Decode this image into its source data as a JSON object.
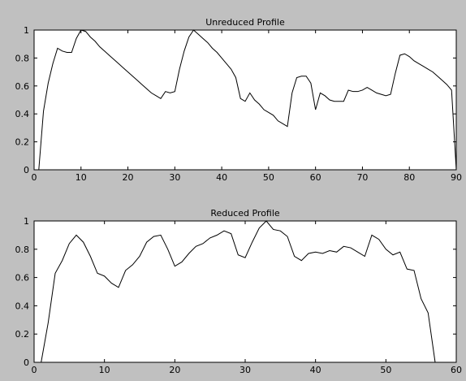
{
  "chart_data": [
    {
      "type": "line",
      "title": "Unreduced Profile",
      "xlabel": "",
      "ylabel": "",
      "xlim": [
        0,
        90
      ],
      "ylim": [
        0,
        1
      ],
      "xticks": [
        0,
        10,
        20,
        30,
        40,
        50,
        60,
        70,
        80,
        90
      ],
      "yticks": [
        0,
        0.2,
        0.4,
        0.6,
        0.8,
        1
      ],
      "grid": false,
      "legend": "none",
      "series": [
        {
          "color": "#000000",
          "x": [
            1,
            2,
            3,
            4,
            5,
            6,
            7,
            8,
            9,
            10,
            11,
            12,
            13,
            14,
            15,
            16,
            17,
            18,
            19,
            20,
            21,
            22,
            23,
            24,
            25,
            26,
            27,
            28,
            29,
            30,
            31,
            32,
            33,
            34,
            35,
            36,
            37,
            38,
            39,
            40,
            41,
            42,
            43,
            44,
            45,
            46,
            47,
            48,
            49,
            50,
            51,
            52,
            53,
            54,
            55,
            56,
            57,
            58,
            59,
            60,
            61,
            62,
            63,
            64,
            65,
            66,
            67,
            68,
            69,
            70,
            71,
            72,
            73,
            74,
            75,
            76,
            77,
            78,
            79,
            80,
            81,
            82,
            83,
            84,
            85,
            86,
            87,
            88,
            89,
            90
          ],
          "values": [
            0.0,
            0.42,
            0.62,
            0.76,
            0.87,
            0.85,
            0.84,
            0.84,
            0.94,
            1.0,
            0.99,
            0.95,
            0.92,
            0.88,
            0.85,
            0.82,
            0.79,
            0.76,
            0.73,
            0.7,
            0.67,
            0.64,
            0.61,
            0.58,
            0.55,
            0.53,
            0.51,
            0.56,
            0.55,
            0.56,
            0.72,
            0.85,
            0.95,
            1.0,
            0.97,
            0.94,
            0.91,
            0.87,
            0.84,
            0.8,
            0.76,
            0.72,
            0.66,
            0.51,
            0.49,
            0.55,
            0.5,
            0.47,
            0.43,
            0.41,
            0.39,
            0.35,
            0.33,
            0.31,
            0.55,
            0.66,
            0.67,
            0.67,
            0.62,
            0.43,
            0.55,
            0.53,
            0.5,
            0.49,
            0.49,
            0.49,
            0.57,
            0.56,
            0.56,
            0.57,
            0.59,
            0.57,
            0.55,
            0.54,
            0.53,
            0.54,
            0.69,
            0.82,
            0.83,
            0.81,
            0.78,
            0.76,
            0.74,
            0.72,
            0.7,
            0.67,
            0.64,
            0.61,
            0.57,
            0.0
          ]
        }
      ]
    },
    {
      "type": "line",
      "title": "Reduced Profile",
      "xlabel": "",
      "ylabel": "",
      "xlim": [
        0,
        60
      ],
      "ylim": [
        0,
        1
      ],
      "xticks": [
        0,
        10,
        20,
        30,
        40,
        50,
        60
      ],
      "yticks": [
        0,
        0.2,
        0.4,
        0.6,
        0.8,
        1
      ],
      "grid": false,
      "legend": "none",
      "series": [
        {
          "color": "#000000",
          "x": [
            1,
            2,
            3,
            4,
            5,
            6,
            7,
            8,
            9,
            10,
            11,
            12,
            13,
            14,
            15,
            16,
            17,
            18,
            19,
            20,
            21,
            22,
            23,
            24,
            25,
            26,
            27,
            28,
            29,
            30,
            31,
            32,
            33,
            34,
            35,
            36,
            37,
            38,
            39,
            40,
            41,
            42,
            43,
            44,
            45,
            46,
            47,
            48,
            49,
            50,
            51,
            52,
            53,
            54,
            55,
            56,
            57
          ],
          "values": [
            0.0,
            0.28,
            0.63,
            0.72,
            0.84,
            0.9,
            0.85,
            0.75,
            0.63,
            0.61,
            0.56,
            0.53,
            0.65,
            0.69,
            0.75,
            0.85,
            0.89,
            0.9,
            0.8,
            0.68,
            0.71,
            0.77,
            0.82,
            0.84,
            0.88,
            0.9,
            0.93,
            0.91,
            0.76,
            0.74,
            0.85,
            0.95,
            1.0,
            0.94,
            0.93,
            0.89,
            0.75,
            0.72,
            0.77,
            0.78,
            0.77,
            0.79,
            0.78,
            0.82,
            0.81,
            0.78,
            0.75,
            0.9,
            0.87,
            0.8,
            0.76,
            0.78,
            0.66,
            0.65,
            0.45,
            0.35,
            0.0
          ]
        }
      ]
    }
  ]
}
